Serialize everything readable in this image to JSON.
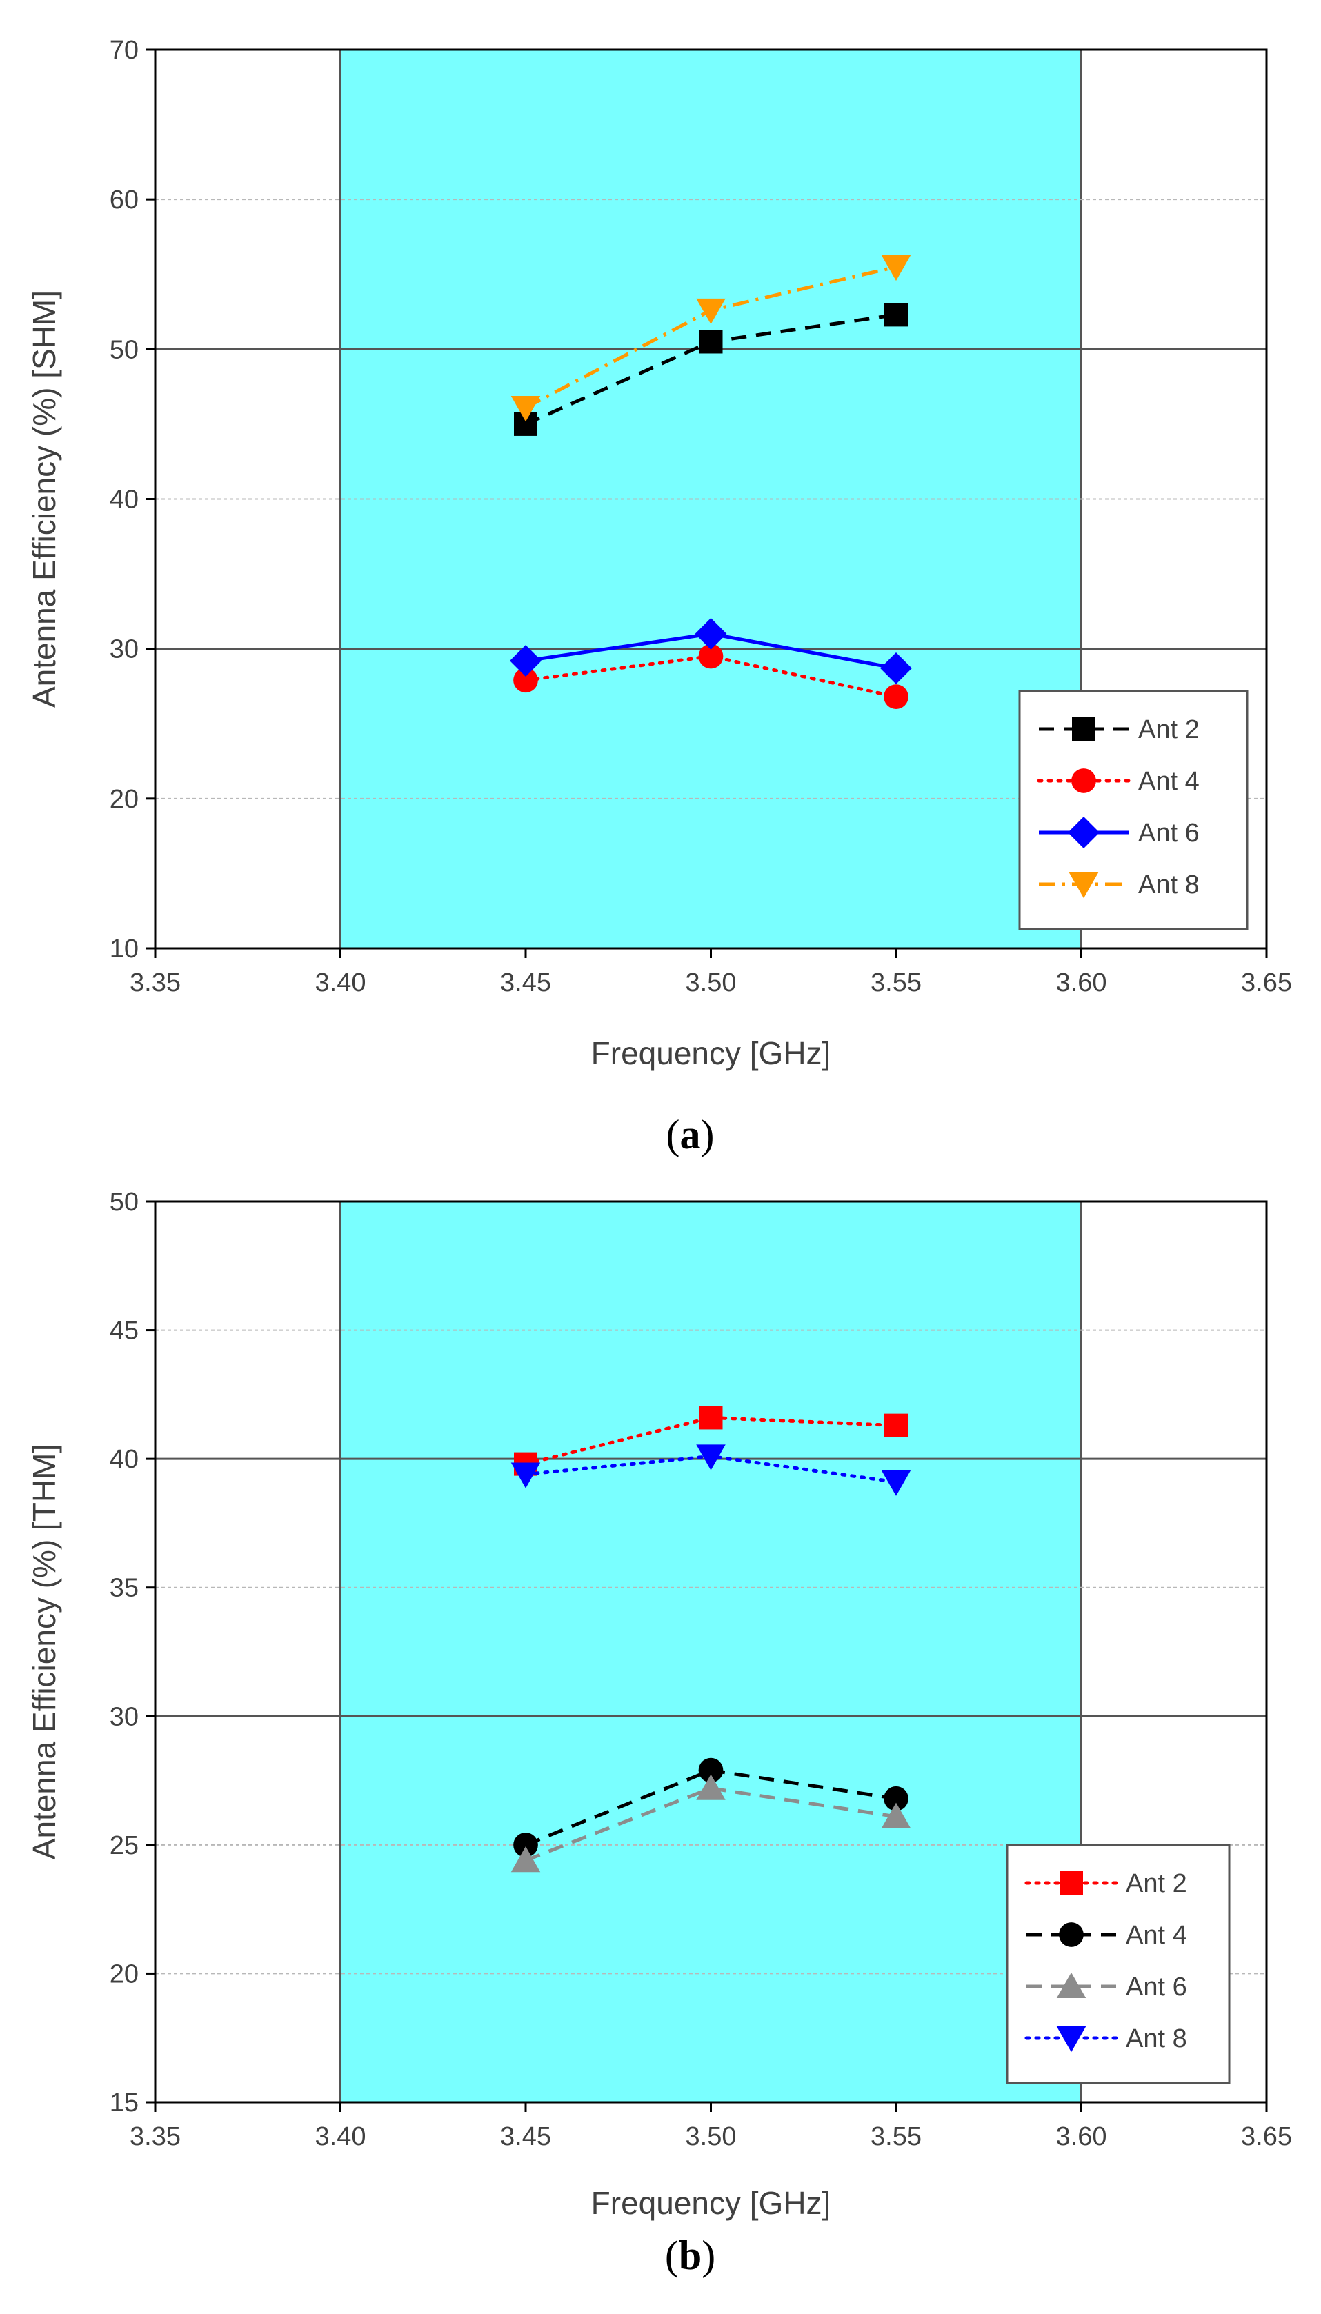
{
  "chart_data": [
    {
      "type": "line",
      "panel_label": "a",
      "xlabel": "Frequency [GHz]",
      "ylabel": "Antenna Efficiency (%) [SHM]",
      "xlim": [
        3.35,
        3.65
      ],
      "ylim": [
        10,
        70
      ],
      "xticks": [
        "3.35",
        "3.40",
        "3.45",
        "3.50",
        "3.55",
        "3.60",
        "3.65"
      ],
      "yticks": [
        "10",
        "20",
        "30",
        "40",
        "50",
        "60",
        "70"
      ],
      "highlight_band": [
        3.4,
        3.6
      ],
      "highlight_color": "#79ffff",
      "major_gridlines": [
        30,
        50
      ],
      "legend_position": "right",
      "x": [
        3.45,
        3.5,
        3.55
      ],
      "series": [
        {
          "name": "Ant 2",
          "values": [
            45.0,
            50.5,
            52.3
          ],
          "color": "#000000",
          "marker": "square",
          "dash": "dashed"
        },
        {
          "name": "Ant 4",
          "values": [
            27.9,
            29.5,
            26.8
          ],
          "color": "#ff0000",
          "marker": "circle",
          "dash": "dotted"
        },
        {
          "name": "Ant 6",
          "values": [
            29.2,
            31.0,
            28.7
          ],
          "color": "#0000ff",
          "marker": "diamond",
          "dash": "solid"
        },
        {
          "name": "Ant 8",
          "values": [
            46.1,
            52.6,
            55.5
          ],
          "color": "#ff9900",
          "marker": "triangle-down",
          "dash": "dashdot"
        }
      ]
    },
    {
      "type": "line",
      "panel_label": "b",
      "xlabel": "Frequency [GHz]",
      "ylabel": "Antenna Efficiency (%) [THM]",
      "xlim": [
        3.35,
        3.65
      ],
      "ylim": [
        15,
        50
      ],
      "xticks": [
        "3.35",
        "3.40",
        "3.45",
        "3.50",
        "3.55",
        "3.60",
        "3.65"
      ],
      "yticks": [
        "15",
        "20",
        "25",
        "30",
        "35",
        "40",
        "45",
        "50"
      ],
      "highlight_band": [
        3.4,
        3.6
      ],
      "highlight_color": "#79ffff",
      "major_gridlines": [
        30,
        40
      ],
      "legend_position": "bottom-right",
      "x": [
        3.45,
        3.5,
        3.55
      ],
      "series": [
        {
          "name": "Ant 2",
          "values": [
            39.8,
            41.6,
            41.3
          ],
          "color": "#ff0000",
          "marker": "square",
          "dash": "dotted"
        },
        {
          "name": "Ant 4",
          "values": [
            25.0,
            27.9,
            26.8
          ],
          "color": "#000000",
          "marker": "circle",
          "dash": "dashed"
        },
        {
          "name": "Ant 6",
          "values": [
            24.4,
            27.2,
            26.1
          ],
          "color": "#8c8c8c",
          "marker": "triangle-up",
          "dash": "dashed"
        },
        {
          "name": "Ant 8",
          "values": [
            39.4,
            40.1,
            39.1
          ],
          "color": "#0000ff",
          "marker": "triangle-down",
          "dash": "dotted"
        }
      ]
    }
  ]
}
